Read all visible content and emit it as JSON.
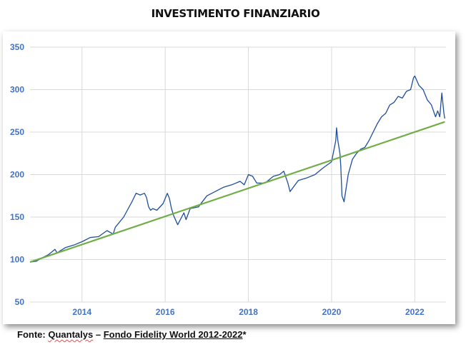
{
  "page": {
    "title": "INVESTIMENTO FINANZIARIO",
    "caption": {
      "prefix": "Fonte:",
      "source": "Quantalys",
      "separator": "–",
      "fund": "Fondo Fidelity World 2012-2022",
      "suffix": "*"
    }
  },
  "colors": {
    "price_line": "#1f4e9c",
    "trend_line": "#70ad47",
    "tick_labels": "#4472c4",
    "grid": "#d9d9d9"
  },
  "chart_data": {
    "type": "line",
    "title": "INVESTIMENTO FINANZIARIO",
    "xlabel": "",
    "ylabel": "",
    "xlim": [
      2012.75,
      2022.75
    ],
    "ylim": [
      50,
      350
    ],
    "y_ticks": [
      50,
      100,
      150,
      200,
      250,
      300,
      350
    ],
    "x_ticks": [
      2014,
      2016,
      2018,
      2020,
      2022
    ],
    "grid": true,
    "legend": "none",
    "series": [
      {
        "x": [
          2012.75,
          2012.9,
          2013.0,
          2013.2,
          2013.35,
          2013.4,
          2013.6,
          2013.8,
          2014.0,
          2014.2,
          2014.4,
          2014.6,
          2014.75,
          2014.8,
          2015.0,
          2015.2,
          2015.3,
          2015.4,
          2015.5,
          2015.55,
          2015.6,
          2015.65,
          2015.7,
          2015.8,
          2015.95,
          2016.05,
          2016.1,
          2016.15,
          2016.2,
          2016.3,
          2016.45,
          2016.5,
          2016.6,
          2016.8,
          2017.0,
          2017.2,
          2017.4,
          2017.6,
          2017.8,
          2017.9,
          2018.0,
          2018.1,
          2018.2,
          2018.4,
          2018.6,
          2018.75,
          2018.85,
          2018.95,
          2019.0,
          2019.2,
          2019.4,
          2019.6,
          2019.8,
          2020.0,
          2020.1,
          2020.12,
          2020.15,
          2020.2,
          2020.22,
          2020.25,
          2020.3,
          2020.4,
          2020.5,
          2020.6,
          2020.7,
          2020.8,
          2020.9,
          2021.0,
          2021.1,
          2021.2,
          2021.3,
          2021.4,
          2021.5,
          2021.6,
          2021.7,
          2021.8,
          2021.9,
          2021.97,
          2022.0,
          2022.1,
          2022.2,
          2022.3,
          2022.4,
          2022.45,
          2022.5,
          2022.55,
          2022.6,
          2022.65,
          2022.7,
          2022.72
        ],
        "values": [
          97,
          98,
          101,
          106,
          112,
          108,
          114,
          117,
          121,
          126,
          127,
          134,
          130,
          138,
          150,
          168,
          178,
          176,
          178,
          173,
          162,
          158,
          160,
          158,
          166,
          178,
          172,
          160,
          152,
          141,
          155,
          147,
          160,
          162,
          175,
          180,
          185,
          188,
          192,
          188,
          200,
          198,
          190,
          190,
          198,
          200,
          204,
          190,
          180,
          193,
          196,
          200,
          208,
          215,
          240,
          255,
          240,
          225,
          210,
          175,
          168,
          200,
          218,
          225,
          230,
          232,
          240,
          250,
          260,
          268,
          272,
          282,
          285,
          292,
          290,
          298,
          300,
          314,
          316,
          305,
          300,
          288,
          282,
          275,
          268,
          275,
          268,
          296,
          272,
          266
        ],
        "color": "#1f4e9c"
      },
      {
        "x": [
          2012.75,
          2022.72
        ],
        "values": [
          97,
          262
        ],
        "color": "#70ad47"
      }
    ]
  }
}
